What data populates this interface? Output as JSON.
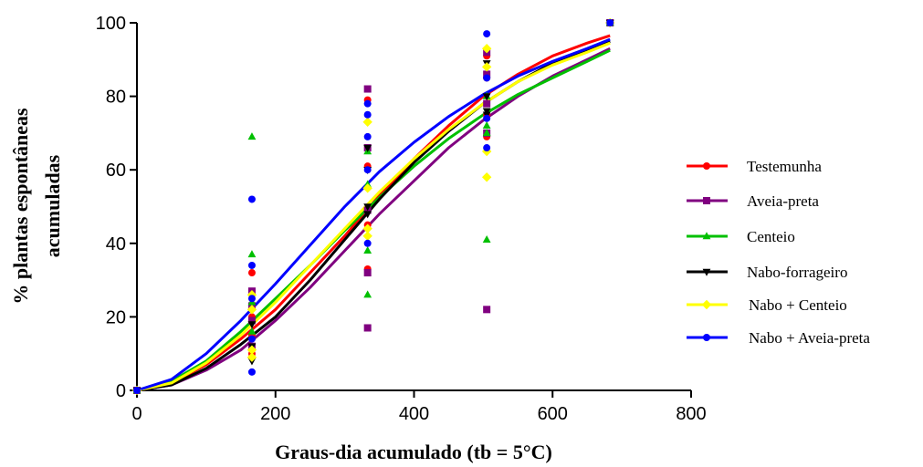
{
  "chart_data": {
    "type": "scatter",
    "title": "",
    "xlabel": "Graus-dia acumulado (tb = 5°C)",
    "ylabel_line1": "% plantas espontâneas",
    "ylabel_line2": "acumuladas",
    "xlim": [
      0,
      800
    ],
    "ylim": [
      0,
      100
    ],
    "xticks": [
      "0",
      "200",
      "400",
      "600",
      "800"
    ],
    "yticks": [
      "0",
      "20",
      "40",
      "60",
      "80",
      "100"
    ],
    "grid": false,
    "legend_position": "right",
    "series": [
      {
        "name": "Testemunha",
        "color": "#ff0000",
        "marker": "circle",
        "points": [
          [
            0,
            0
          ],
          [
            166,
            32
          ],
          [
            166,
            20
          ],
          [
            166,
            15
          ],
          [
            166,
            10
          ],
          [
            333,
            79
          ],
          [
            333,
            61
          ],
          [
            333,
            45
          ],
          [
            333,
            33
          ],
          [
            505,
            91
          ],
          [
            505,
            85
          ],
          [
            505,
            75
          ],
          [
            505,
            69
          ],
          [
            683,
            100
          ]
        ],
        "fit": [
          [
            0,
            0
          ],
          [
            50,
            2
          ],
          [
            100,
            7
          ],
          [
            150,
            14
          ],
          [
            200,
            22
          ],
          [
            250,
            32
          ],
          [
            300,
            42
          ],
          [
            350,
            53
          ],
          [
            400,
            63
          ],
          [
            450,
            72
          ],
          [
            500,
            80
          ],
          [
            550,
            86
          ],
          [
            600,
            91
          ],
          [
            650,
            94.5
          ],
          [
            683,
            96.5
          ]
        ]
      },
      {
        "name": "Aveia-preta",
        "color": "#800080",
        "marker": "square",
        "points": [
          [
            0,
            0
          ],
          [
            166,
            27
          ],
          [
            166,
            23
          ],
          [
            166,
            19
          ],
          [
            166,
            12
          ],
          [
            333,
            82
          ],
          [
            333,
            66
          ],
          [
            333,
            49
          ],
          [
            333,
            32
          ],
          [
            333,
            17
          ],
          [
            505,
            92
          ],
          [
            505,
            86
          ],
          [
            505,
            78
          ],
          [
            505,
            70
          ],
          [
            505,
            22
          ],
          [
            683,
            100
          ]
        ],
        "fit": [
          [
            0,
            0
          ],
          [
            50,
            1.5
          ],
          [
            100,
            5.5
          ],
          [
            150,
            11
          ],
          [
            200,
            19
          ],
          [
            250,
            28
          ],
          [
            300,
            38
          ],
          [
            350,
            48
          ],
          [
            400,
            57
          ],
          [
            450,
            66
          ],
          [
            500,
            73.5
          ],
          [
            550,
            80
          ],
          [
            600,
            85.5
          ],
          [
            650,
            90
          ],
          [
            683,
            93
          ]
        ]
      },
      {
        "name": "Centeio",
        "color": "#00c000",
        "marker": "triangle",
        "points": [
          [
            0,
            0
          ],
          [
            166,
            69
          ],
          [
            166,
            37
          ],
          [
            166,
            24
          ],
          [
            166,
            16
          ],
          [
            333,
            65
          ],
          [
            333,
            56
          ],
          [
            333,
            38
          ],
          [
            333,
            26
          ],
          [
            505,
            80
          ],
          [
            505,
            72
          ],
          [
            505,
            70
          ],
          [
            505,
            41
          ],
          [
            683,
            100
          ]
        ],
        "fit": [
          [
            0,
            0
          ],
          [
            50,
            2.5
          ],
          [
            100,
            8
          ],
          [
            150,
            16
          ],
          [
            200,
            25
          ],
          [
            250,
            34
          ],
          [
            300,
            43.5
          ],
          [
            350,
            52.5
          ],
          [
            400,
            61
          ],
          [
            450,
            68.5
          ],
          [
            500,
            75
          ],
          [
            550,
            80.5
          ],
          [
            600,
            85
          ],
          [
            650,
            89.5
          ],
          [
            683,
            92.5
          ]
        ]
      },
      {
        "name": "Nabo-forrageiro",
        "color": "#000000",
        "marker": "triangle-down",
        "points": [
          [
            0,
            0
          ],
          [
            166,
            18
          ],
          [
            166,
            12
          ],
          [
            166,
            8
          ],
          [
            333,
            66
          ],
          [
            333,
            60
          ],
          [
            333,
            50
          ],
          [
            333,
            48
          ],
          [
            505,
            89
          ],
          [
            505,
            80
          ],
          [
            505,
            76
          ],
          [
            505,
            75
          ],
          [
            683,
            100
          ]
        ],
        "fit": [
          [
            0,
            0
          ],
          [
            50,
            1.5
          ],
          [
            100,
            6
          ],
          [
            150,
            12.5
          ],
          [
            200,
            20
          ],
          [
            250,
            30
          ],
          [
            300,
            41
          ],
          [
            350,
            52
          ],
          [
            400,
            62
          ],
          [
            450,
            70.5
          ],
          [
            500,
            78
          ],
          [
            550,
            84
          ],
          [
            600,
            89
          ],
          [
            650,
            92.5
          ],
          [
            683,
            95
          ]
        ]
      },
      {
        "name": "Nabo + Centeio",
        "color": "#ffff00",
        "marker": "diamond",
        "points": [
          [
            0,
            0
          ],
          [
            166,
            26
          ],
          [
            166,
            22
          ],
          [
            166,
            11
          ],
          [
            166,
            9
          ],
          [
            333,
            73
          ],
          [
            333,
            55
          ],
          [
            333,
            44
          ],
          [
            333,
            42
          ],
          [
            505,
            93
          ],
          [
            505,
            88
          ],
          [
            505,
            65
          ],
          [
            505,
            58
          ],
          [
            683,
            100
          ]
        ],
        "fit": [
          [
            0,
            0
          ],
          [
            50,
            2
          ],
          [
            100,
            7.5
          ],
          [
            150,
            15
          ],
          [
            200,
            24
          ],
          [
            250,
            34
          ],
          [
            300,
            44
          ],
          [
            350,
            54
          ],
          [
            400,
            63
          ],
          [
            450,
            71
          ],
          [
            500,
            78
          ],
          [
            550,
            84
          ],
          [
            600,
            88.5
          ],
          [
            650,
            92
          ],
          [
            683,
            94.5
          ]
        ]
      },
      {
        "name": "Nabo + Aveia-preta",
        "color": "#0000ff",
        "marker": "circle",
        "points": [
          [
            0,
            0
          ],
          [
            166,
            52
          ],
          [
            166,
            34
          ],
          [
            166,
            25
          ],
          [
            166,
            14
          ],
          [
            166,
            5
          ],
          [
            333,
            78
          ],
          [
            333,
            75
          ],
          [
            333,
            69
          ],
          [
            333,
            60
          ],
          [
            333,
            40
          ],
          [
            505,
            97
          ],
          [
            505,
            85
          ],
          [
            505,
            74
          ],
          [
            505,
            66
          ],
          [
            683,
            100
          ]
        ],
        "fit": [
          [
            0,
            0
          ],
          [
            50,
            3
          ],
          [
            100,
            10
          ],
          [
            150,
            19
          ],
          [
            200,
            29
          ],
          [
            250,
            39.5
          ],
          [
            300,
            50
          ],
          [
            350,
            59.5
          ],
          [
            400,
            67.5
          ],
          [
            450,
            74.5
          ],
          [
            500,
            80.5
          ],
          [
            550,
            85.5
          ],
          [
            600,
            89.5
          ],
          [
            650,
            93
          ],
          [
            683,
            95.5
          ]
        ]
      }
    ]
  }
}
